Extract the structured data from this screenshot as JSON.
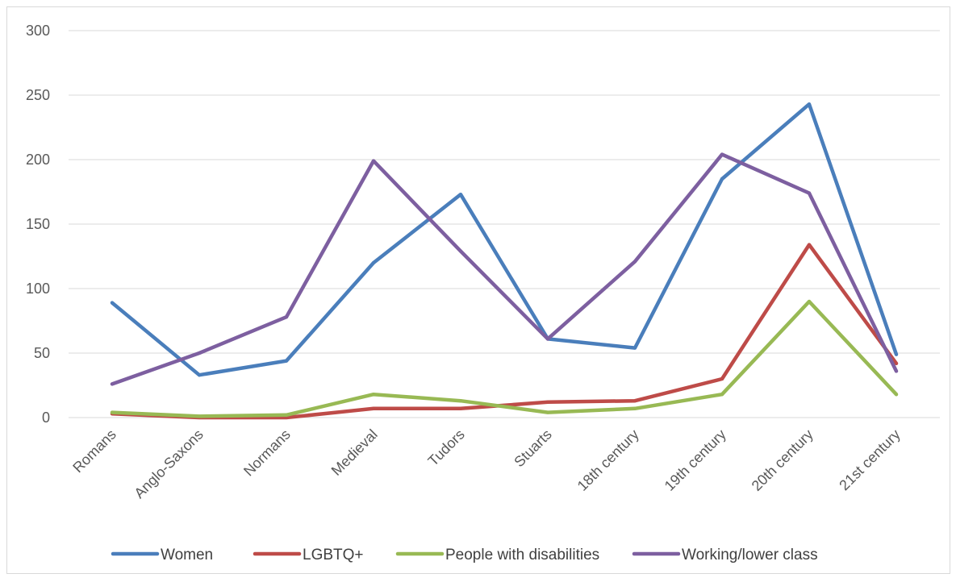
{
  "chart_data": {
    "type": "line",
    "title": "",
    "xlabel": "",
    "ylabel": "",
    "ylim": [
      0,
      300
    ],
    "yticks": [
      0,
      50,
      100,
      150,
      200,
      250,
      300
    ],
    "grid": true,
    "legend_position": "bottom",
    "categories": [
      "Romans",
      "Anglo-Saxons",
      "Normans",
      "Medieval",
      "Tudors",
      "Stuarts",
      "18th century",
      "19th century",
      "20th century",
      "21st century"
    ],
    "series": [
      {
        "name": "Women",
        "color": "#4a7ebb",
        "values": [
          89,
          33,
          44,
          120,
          173,
          61,
          54,
          185,
          243,
          49
        ]
      },
      {
        "name": "LGBTQ+",
        "color": "#be4b48",
        "values": [
          3,
          0,
          0,
          7,
          7,
          12,
          13,
          30,
          134,
          42
        ]
      },
      {
        "name": "People with disabilities",
        "color": "#98b954",
        "values": [
          4,
          1,
          2,
          18,
          13,
          4,
          7,
          18,
          90,
          18
        ]
      },
      {
        "name": "Working/lower class",
        "color": "#7d5fa0",
        "values": [
          26,
          50,
          78,
          199,
          129,
          61,
          121,
          204,
          174,
          36
        ]
      }
    ]
  }
}
